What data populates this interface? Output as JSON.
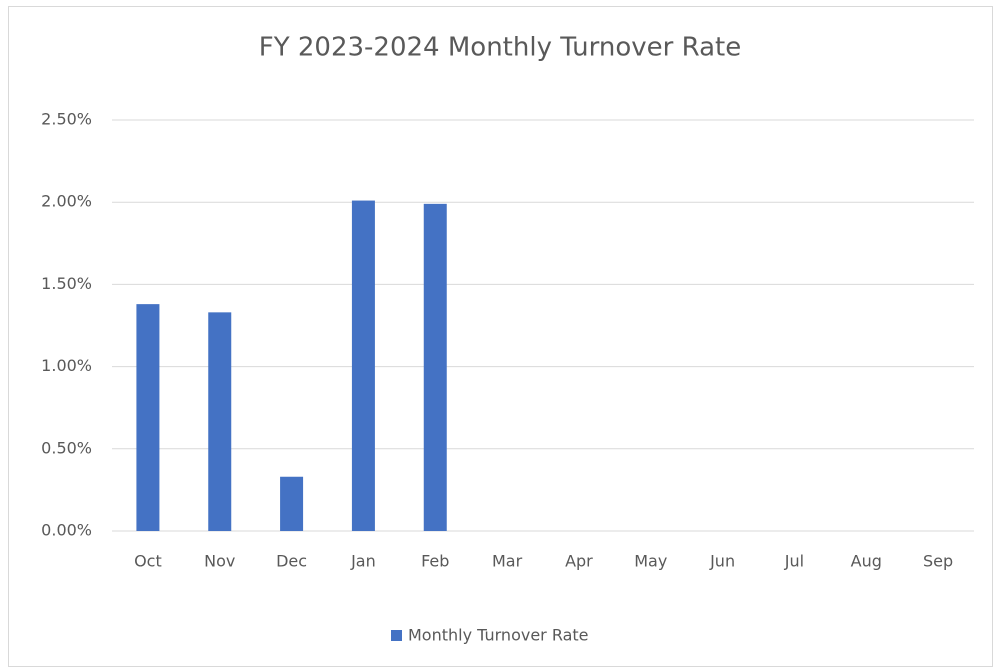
{
  "chart_data": {
    "type": "bar",
    "title": "FY 2023-2024 Monthly Turnover Rate",
    "categories": [
      "Oct",
      "Nov",
      "Dec",
      "Jan",
      "Feb",
      "Mar",
      "Apr",
      "May",
      "Jun",
      "Jul",
      "Aug",
      "Sep"
    ],
    "series": [
      {
        "name": "Monthly Turnover Rate",
        "color": "#4472c4",
        "values": [
          1.38,
          1.33,
          0.33,
          2.01,
          1.99,
          null,
          null,
          null,
          null,
          null,
          null,
          null
        ]
      }
    ],
    "ylim": [
      0,
      2.5
    ],
    "yticks": [
      {
        "value": 0,
        "label": "0.00%"
      },
      {
        "value": 0.5,
        "label": "0.50%"
      },
      {
        "value": 1,
        "label": "1.00%"
      },
      {
        "value": 1.5,
        "label": "1.50%"
      },
      {
        "value": 2,
        "label": "2.00%"
      },
      {
        "value": 2.5,
        "label": "2.50%"
      }
    ],
    "grid": true,
    "legend": "bottom"
  }
}
